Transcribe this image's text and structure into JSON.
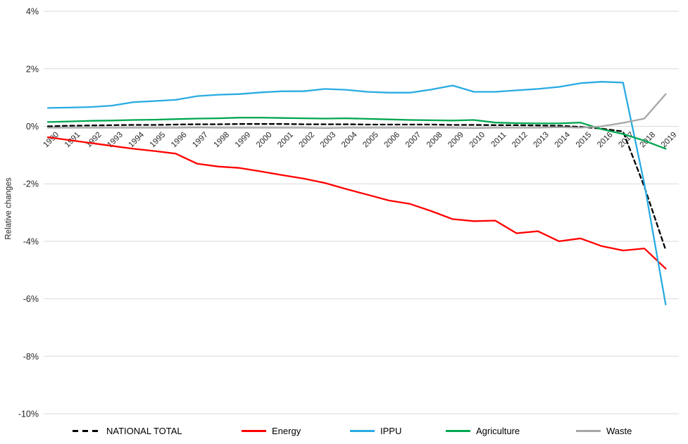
{
  "chart_data": {
    "type": "line",
    "title": "",
    "xlabel": "",
    "ylabel": "Relative changes",
    "ylim": [
      -10,
      4
    ],
    "grid": "horizontal",
    "legend_position": "bottom",
    "gridline_color": "#d9d9d9",
    "y_ticks": [
      {
        "label": "4%",
        "value": 4
      },
      {
        "label": "2%",
        "value": 2
      },
      {
        "label": "0%",
        "value": 0
      },
      {
        "label": "-2%",
        "value": -2
      },
      {
        "label": "-4%",
        "value": -4
      },
      {
        "label": "-6%",
        "value": -6
      },
      {
        "label": "-8%",
        "value": -8
      },
      {
        "label": "-10%",
        "value": -10
      }
    ],
    "x_categories": [
      "1990",
      "1991",
      "1992",
      "1993",
      "1994",
      "1995",
      "1996",
      "1997",
      "1998",
      "1999",
      "2000",
      "2001",
      "2002",
      "2003",
      "2004",
      "2005",
      "2006",
      "2007",
      "2008",
      "2009",
      "2010",
      "2011",
      "2012",
      "2013",
      "2014",
      "2015",
      "2016",
      "2017",
      "2018",
      "2019"
    ],
    "series": [
      {
        "name": "NATIONAL TOTAL",
        "color": "#000000",
        "style": "dashed",
        "values": [
          0.0,
          0.02,
          0.03,
          0.04,
          0.05,
          0.05,
          0.06,
          0.07,
          0.07,
          0.08,
          0.08,
          0.08,
          0.07,
          0.07,
          0.07,
          0.06,
          0.06,
          0.06,
          0.06,
          0.05,
          0.05,
          0.04,
          0.04,
          0.03,
          0.02,
          -0.02,
          -0.08,
          -0.18,
          -2.1,
          -4.3
        ]
      },
      {
        "name": "Energy",
        "color": "#ff0000",
        "style": "solid",
        "values": [
          -0.38,
          -0.48,
          -0.58,
          -0.68,
          -0.78,
          -0.86,
          -0.95,
          -1.3,
          -1.4,
          -1.45,
          -1.57,
          -1.7,
          -1.82,
          -1.97,
          -2.18,
          -2.38,
          -2.58,
          -2.7,
          -2.95,
          -3.23,
          -3.3,
          -3.28,
          -3.72,
          -3.65,
          -4.0,
          -3.9,
          -4.17,
          -4.32,
          -4.25,
          -4.95
        ]
      },
      {
        "name": "IPPU",
        "color": "#29abe2",
        "style": "solid",
        "values": [
          0.64,
          0.65,
          0.67,
          0.72,
          0.84,
          0.88,
          0.92,
          1.05,
          1.1,
          1.12,
          1.18,
          1.22,
          1.22,
          1.3,
          1.27,
          1.2,
          1.17,
          1.17,
          1.28,
          1.42,
          1.2,
          1.2,
          1.25,
          1.3,
          1.37,
          1.5,
          1.55,
          1.52,
          -2.0,
          -6.2
        ]
      },
      {
        "name": "Agriculture",
        "color": "#00a651",
        "style": "solid",
        "values": [
          0.15,
          0.17,
          0.19,
          0.2,
          0.22,
          0.23,
          0.25,
          0.27,
          0.28,
          0.3,
          0.3,
          0.29,
          0.28,
          0.27,
          0.28,
          0.26,
          0.24,
          0.22,
          0.21,
          0.2,
          0.22,
          0.13,
          0.11,
          0.1,
          0.1,
          0.13,
          -0.1,
          -0.27,
          -0.5,
          -0.78
        ]
      },
      {
        "name": "Waste",
        "color": "#a6a6a6",
        "style": "solid",
        "values": [
          -0.05,
          -0.05,
          -0.05,
          -0.05,
          -0.05,
          -0.05,
          -0.05,
          -0.04,
          -0.05,
          -0.05,
          -0.05,
          -0.05,
          -0.05,
          -0.06,
          -0.05,
          -0.05,
          -0.05,
          -0.05,
          -0.05,
          -0.05,
          -0.06,
          -0.05,
          -0.05,
          -0.05,
          -0.03,
          -0.05,
          0.0,
          0.12,
          0.27,
          1.12
        ]
      }
    ]
  }
}
